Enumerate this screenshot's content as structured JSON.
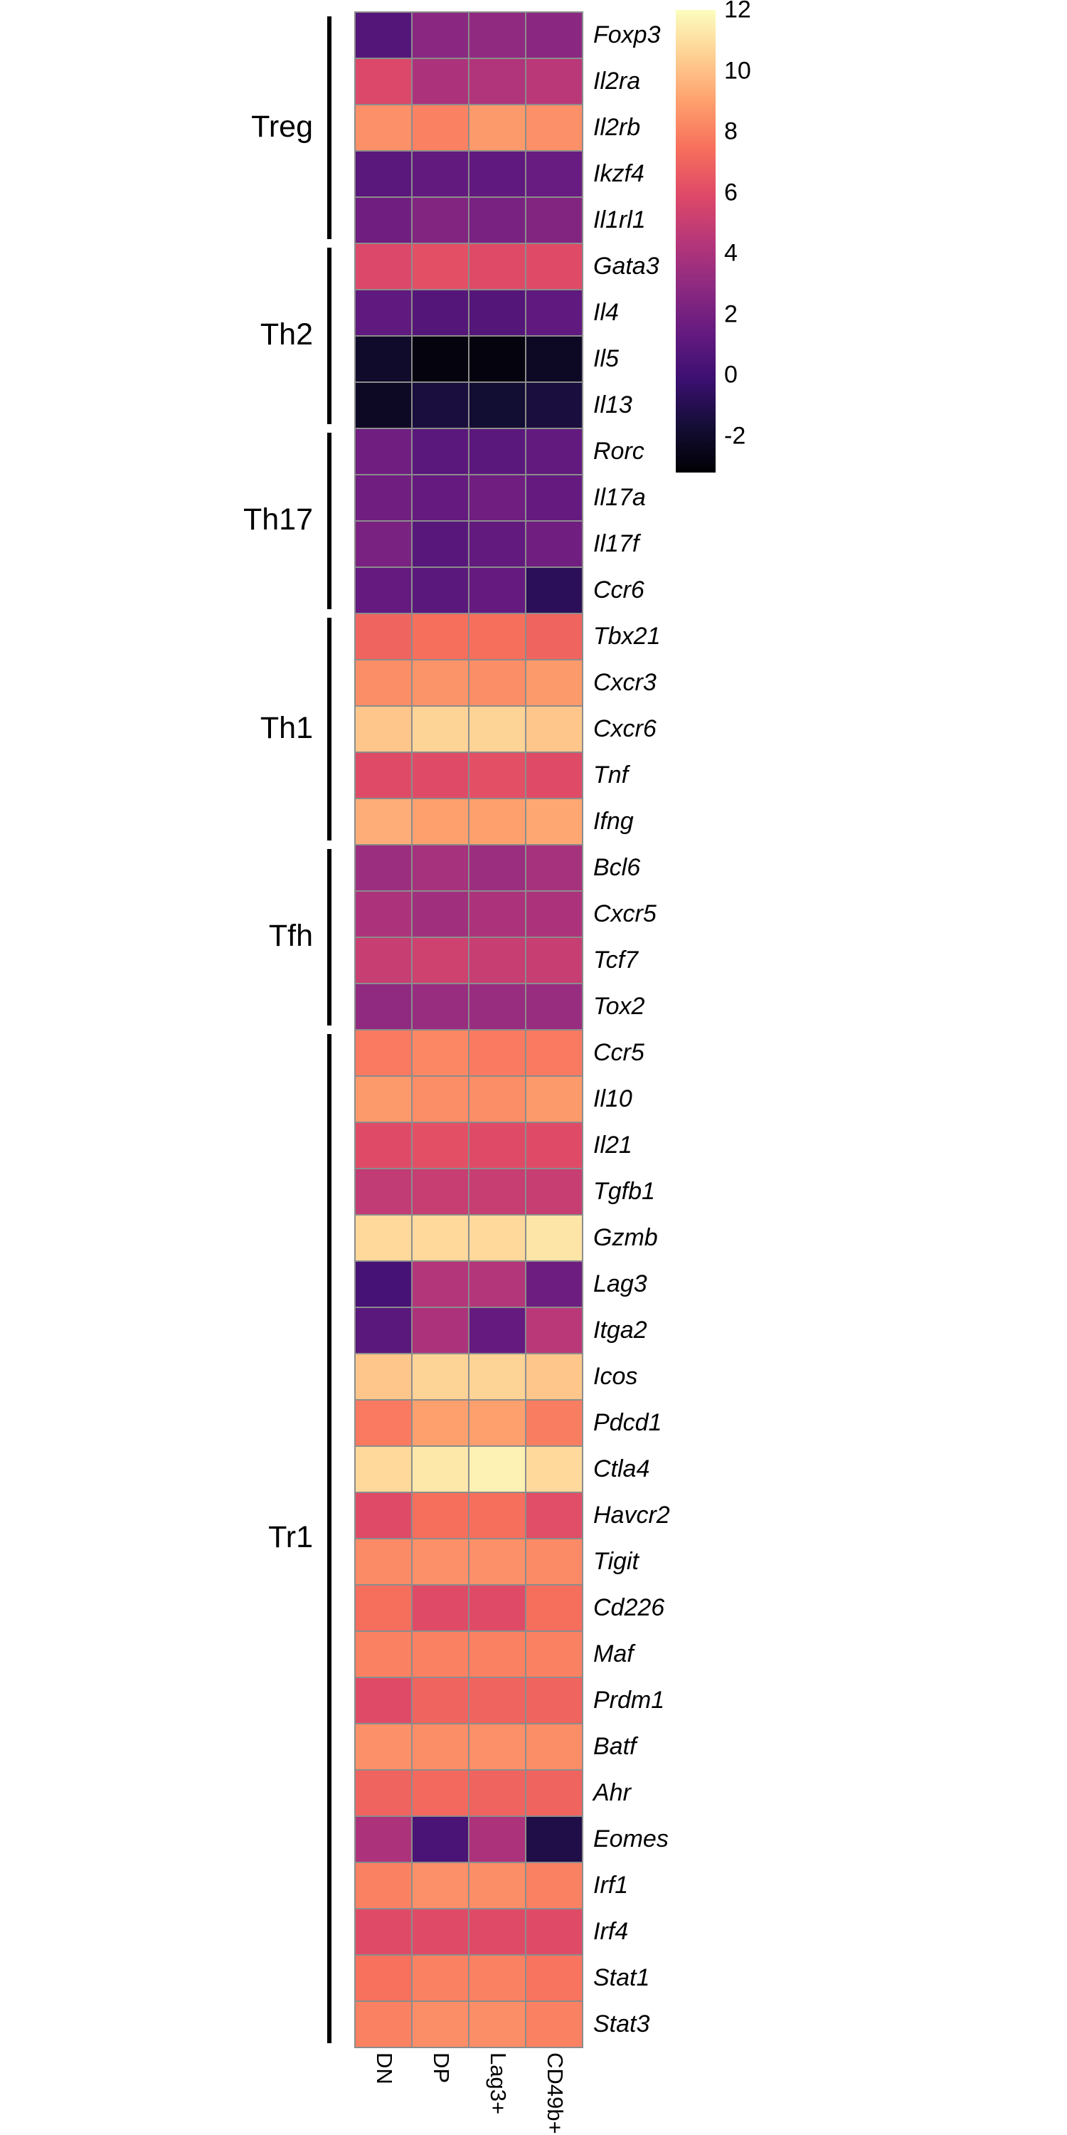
{
  "figure": {
    "description": "T helper subset gene expression heatmap"
  },
  "chart_data": {
    "type": "heatmap",
    "colormap": "magma",
    "vmin": -3.2,
    "vmax": 12,
    "grid_line_color": "#8c8c8c",
    "legend_position": "top-right",
    "columns": [
      "DN",
      "DP",
      "Lag3+",
      "CD49b+"
    ],
    "colorbar_ticks": [
      12,
      10,
      8,
      6,
      4,
      2,
      0,
      -2
    ],
    "groups": [
      {
        "name": "Treg",
        "rows": [
          {
            "gene": "Foxp3",
            "values": [
              0.8,
              2.8,
              3.0,
              2.8
            ]
          },
          {
            "gene": "Il2ra",
            "values": [
              5.8,
              4.0,
              4.2,
              4.5
            ]
          },
          {
            "gene": "Il2rb",
            "values": [
              8.5,
              8.0,
              8.8,
              8.5
            ]
          },
          {
            "gene": "Ikzf4",
            "values": [
              1.0,
              1.3,
              1.2,
              1.5
            ]
          },
          {
            "gene": "Il1rl1",
            "values": [
              1.8,
              2.5,
              2.2,
              2.5
            ]
          }
        ]
      },
      {
        "name": "Th2",
        "rows": [
          {
            "gene": "Gata3",
            "values": [
              5.8,
              6.2,
              6.0,
              6.0
            ]
          },
          {
            "gene": "Il4",
            "values": [
              1.2,
              0.8,
              0.8,
              1.2
            ]
          },
          {
            "gene": "Il5",
            "values": [
              -2.0,
              -2.9,
              -2.9,
              -2.2
            ]
          },
          {
            "gene": "Il13",
            "values": [
              -2.2,
              -1.5,
              -1.8,
              -1.5
            ]
          }
        ]
      },
      {
        "name": "Th17",
        "rows": [
          {
            "gene": "Rorc",
            "values": [
              1.8,
              1.0,
              1.0,
              1.3
            ]
          },
          {
            "gene": "Il17a",
            "values": [
              1.8,
              1.4,
              1.8,
              1.4
            ]
          },
          {
            "gene": "Il17f",
            "values": [
              2.2,
              0.9,
              1.3,
              1.8
            ]
          },
          {
            "gene": "Ccr6",
            "values": [
              1.4,
              1.0,
              1.4,
              -0.8
            ]
          }
        ]
      },
      {
        "name": "Th1",
        "rows": [
          {
            "gene": "Tbx21",
            "values": [
              7.0,
              7.4,
              7.4,
              7.0
            ]
          },
          {
            "gene": "Cxcr3",
            "values": [
              8.4,
              8.6,
              8.4,
              8.8
            ]
          },
          {
            "gene": "Cxcr6",
            "values": [
              10.2,
              10.6,
              10.6,
              10.2
            ]
          },
          {
            "gene": "Tnf",
            "values": [
              6.0,
              6.0,
              6.2,
              6.0
            ]
          },
          {
            "gene": "Ifng",
            "values": [
              9.4,
              9.0,
              9.0,
              9.2
            ]
          }
        ]
      },
      {
        "name": "Tfh",
        "rows": [
          {
            "gene": "Bcl6",
            "values": [
              3.4,
              3.8,
              3.4,
              3.8
            ]
          },
          {
            "gene": "Cxcr5",
            "values": [
              4.0,
              3.6,
              4.0,
              4.0
            ]
          },
          {
            "gene": "Tcf7",
            "values": [
              5.0,
              5.3,
              5.0,
              5.0
            ]
          },
          {
            "gene": "Tox2",
            "values": [
              3.0,
              3.3,
              3.3,
              3.3
            ]
          }
        ]
      },
      {
        "name": "Tr1",
        "rows": [
          {
            "gene": "Ccr5",
            "values": [
              7.8,
              8.2,
              7.8,
              7.8
            ]
          },
          {
            "gene": "Il10",
            "values": [
              8.8,
              8.4,
              8.4,
              8.8
            ]
          },
          {
            "gene": "Il21",
            "values": [
              6.0,
              6.2,
              6.0,
              6.0
            ]
          },
          {
            "gene": "Tgfb1",
            "values": [
              4.8,
              5.0,
              5.0,
              5.0
            ]
          },
          {
            "gene": "Gzmb",
            "values": [
              10.8,
              10.8,
              10.8,
              11.2
            ]
          },
          {
            "gene": "Lag3",
            "values": [
              0.3,
              4.3,
              4.3,
              1.7
            ]
          },
          {
            "gene": "Itga2",
            "values": [
              1.0,
              4.0,
              1.4,
              4.5
            ]
          },
          {
            "gene": "Icos",
            "values": [
              10.2,
              10.6,
              10.6,
              10.2
            ]
          },
          {
            "gene": "Pdcd1",
            "values": [
              7.8,
              9.0,
              9.0,
              7.9
            ]
          },
          {
            "gene": "Ctla4",
            "values": [
              10.8,
              11.3,
              11.6,
              10.8
            ]
          },
          {
            "gene": "Havcr2",
            "values": [
              6.0,
              7.4,
              7.4,
              6.1
            ]
          },
          {
            "gene": "Tigit",
            "values": [
              8.3,
              8.5,
              8.5,
              8.3
            ]
          },
          {
            "gene": "Cd226",
            "values": [
              7.4,
              6.0,
              6.0,
              7.4
            ]
          },
          {
            "gene": "Maf",
            "values": [
              8.0,
              8.0,
              8.0,
              8.0
            ]
          },
          {
            "gene": "Prdm1",
            "values": [
              6.0,
              7.0,
              7.0,
              7.0
            ]
          },
          {
            "gene": "Batf",
            "values": [
              8.5,
              8.4,
              8.5,
              8.4
            ]
          },
          {
            "gene": "Ahr",
            "values": [
              7.0,
              7.2,
              7.0,
              7.0
            ]
          },
          {
            "gene": "Eomes",
            "values": [
              4.0,
              0.4,
              4.0,
              -1.2
            ]
          },
          {
            "gene": "Irf1",
            "values": [
              8.0,
              8.5,
              8.4,
              8.0
            ]
          },
          {
            "gene": "Irf4",
            "values": [
              6.0,
              6.0,
              6.0,
              6.0
            ]
          },
          {
            "gene": "Stat1",
            "values": [
              7.5,
              8.0,
              8.0,
              7.6
            ]
          },
          {
            "gene": "Stat3",
            "values": [
              8.0,
              8.4,
              8.4,
              8.0
            ]
          }
        ]
      }
    ]
  }
}
